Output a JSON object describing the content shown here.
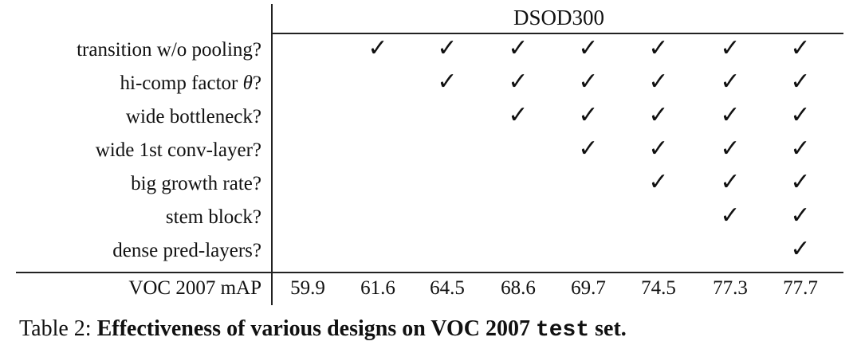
{
  "table": {
    "header": "DSOD300",
    "rows": [
      {
        "label_pre": "transition w/o pooling?",
        "label_math": "",
        "label_post": "",
        "start_col": 1
      },
      {
        "label_pre": "hi-comp factor ",
        "label_math": "θ",
        "label_post": "?",
        "start_col": 2
      },
      {
        "label_pre": "wide bottleneck?",
        "label_math": "",
        "label_post": "",
        "start_col": 3
      },
      {
        "label_pre": "wide 1st conv-layer?",
        "label_math": "",
        "label_post": "",
        "start_col": 4
      },
      {
        "label_pre": "big growth rate?",
        "label_math": "",
        "label_post": "",
        "start_col": 5
      },
      {
        "label_pre": "stem block?",
        "label_math": "",
        "label_post": "",
        "start_col": 6
      },
      {
        "label_pre": "dense pred-layers?",
        "label_math": "",
        "label_post": "",
        "start_col": 7
      }
    ],
    "check_glyph": "✓",
    "metric_label": "VOC 2007 mAP",
    "metric_values": [
      "59.9",
      "61.6",
      "64.5",
      "68.6",
      "69.7",
      "74.5",
      "77.3",
      "77.7"
    ]
  },
  "caption": {
    "prefix": "Table 2: ",
    "bold": "Effectiveness of various designs on VOC 2007 ",
    "mono": "test",
    "suffix": " set."
  }
}
